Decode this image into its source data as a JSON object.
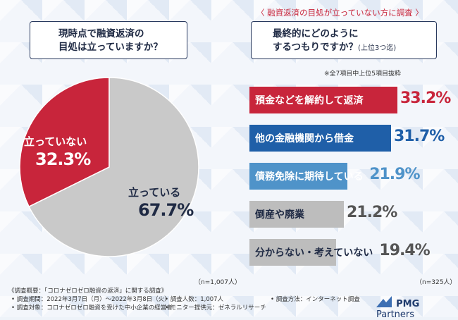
{
  "left_question": {
    "line1": "現時点で融資返済の",
    "line2": "目処は立っていますか？"
  },
  "right_header": "〈 融資返済の目処が立っていない方に調査 〉",
  "right_question": {
    "line1": "最終的にどのように",
    "line2": "するつもりですか？",
    "suffix": "(上位3つ迄)"
  },
  "note": "※全7項目中上位5項目抜粋",
  "pie_labels": {
    "not_standing": {
      "label": "立っていない",
      "value": "32.3%"
    },
    "standing": {
      "label": "立っている",
      "value": "67.7%"
    }
  },
  "n_left": "（n=1,007人）",
  "n_right": "（n=325人）",
  "chart_data": [
    {
      "type": "pie",
      "title": "現時点で融資返済の目処は立っていますか？",
      "labels": [
        "立っていない",
        "立っている"
      ],
      "values": [
        32.3,
        67.7
      ],
      "colors": [
        "#c8253b",
        "#c9c9c9"
      ],
      "n": "n=1,007人"
    },
    {
      "type": "bar",
      "title": "最終的にどのようにするつもりですか？(上位3つ迄)",
      "categories": [
        "預金などを解約して返済",
        "他の金融機関から借金",
        "債務免除に期待している",
        "倒産や廃業",
        "分からない・考えていない"
      ],
      "values": [
        33.2,
        31.7,
        21.9,
        21.2,
        19.4
      ],
      "value_labels": [
        "33.2%",
        "31.7%",
        "21.9%",
        "21.2%",
        "19.4%"
      ],
      "colors": [
        "#c8253b",
        "#1f5fa8",
        "#4f93c9",
        "#bdbdbd",
        "#bdbdbd"
      ],
      "n": "n=325人"
    }
  ],
  "footer": {
    "title": "《調査概要：「コロナゼロゼロ融資の返済」に関する調査》",
    "period": "• 調査期間：2022年3月7日（月）〜2022年3月8日（火）",
    "count": "• 調査人数：1,007人",
    "method": "• 調査方法：インターネット調査",
    "target": "• 調査対象：コロナゼロゼロ融資を受けた中小企業の経営者",
    "provider": "• モニター提供元：ゼネラルリサーチ"
  },
  "logo": {
    "pmg": "PMG",
    "partners": "Partners"
  }
}
